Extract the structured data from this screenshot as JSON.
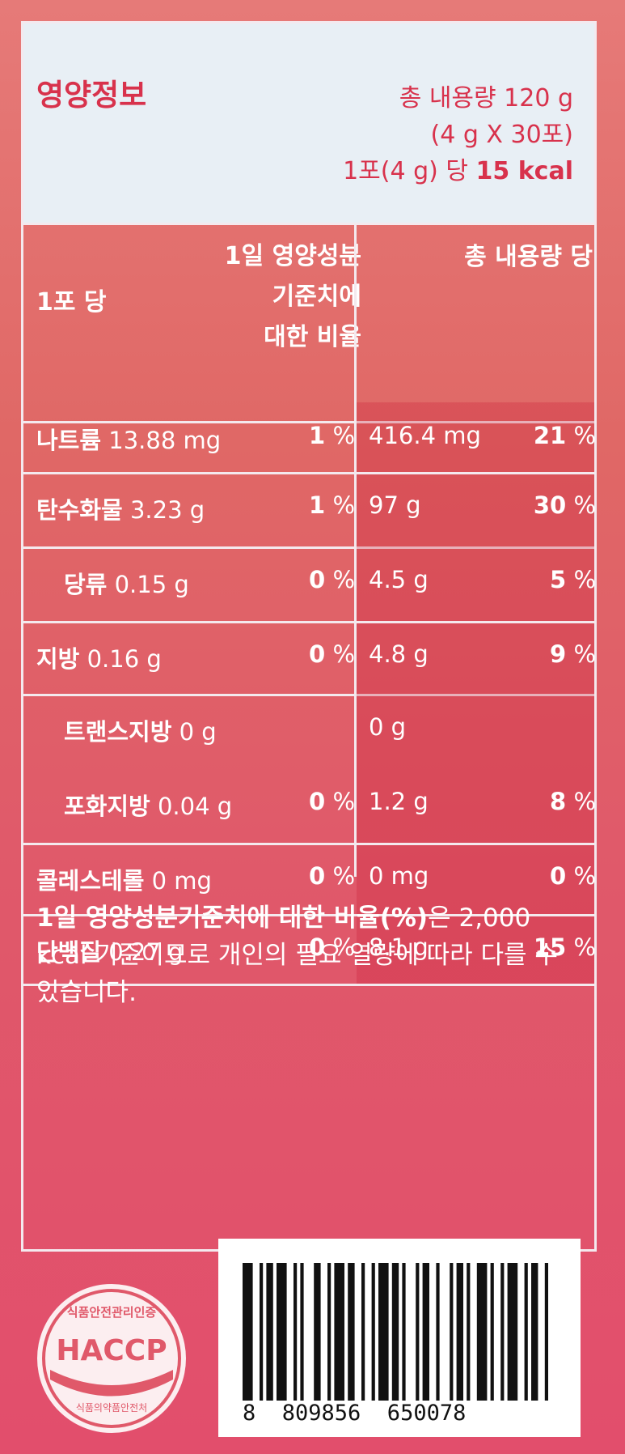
{
  "header": {
    "title": "영양정보",
    "total_content": "총 내용량 120 g",
    "pack_info": "(4 g X 30포)",
    "per_pack_prefix": "1포(4 g) 당",
    "per_pack_kcal": "15 kcal"
  },
  "columns": {
    "per_pack": "1포 당",
    "daily_value_line1": "1일 영양성분",
    "daily_value_line2": "기준치에",
    "daily_value_line3": "대한 비율",
    "per_total": "총 내용량 당"
  },
  "rows": [
    {
      "name": "나트륨",
      "amount": "13.88 mg",
      "pct": "1",
      "total": "416.4 mg",
      "total_pct": "21"
    },
    {
      "name": "탄수화물",
      "amount": "3.23 g",
      "pct": "1",
      "total": "97 g",
      "total_pct": "30"
    },
    {
      "name": "당류",
      "amount": "0.15 g",
      "pct": "0",
      "total": "4.5 g",
      "total_pct": "5"
    },
    {
      "name": "지방",
      "amount": "0.16 g",
      "pct": "0",
      "total": "4.8 g",
      "total_pct": "9"
    },
    {
      "name": "트랜스지방",
      "amount": "0 g",
      "pct": "",
      "total": "0 g",
      "total_pct": ""
    },
    {
      "name": "포화지방",
      "amount": "0.04 g",
      "pct": "0",
      "total": "1.2 g",
      "total_pct": "8"
    },
    {
      "name": "콜레스테롤",
      "amount": "0 mg",
      "pct": "0",
      "total": "0 mg",
      "total_pct": "0"
    },
    {
      "name": "단백질",
      "amount": "0.27 g",
      "pct": "0",
      "total": "8.1 g",
      "total_pct": "15"
    }
  ],
  "percent_sign": "%",
  "note": {
    "bold": "1일 영양성분기준치에 대한 비율(%)",
    "rest": "은 2,000 kcal 기준이므로 개인의 필요 열량에 따라 다를 수 있습니다."
  },
  "haccp": {
    "top_text": "식품안전관리인증",
    "logo": "HACCP",
    "bottom_text": "식품의약품안전처"
  },
  "barcode": {
    "number": "8  809856  650078"
  }
}
